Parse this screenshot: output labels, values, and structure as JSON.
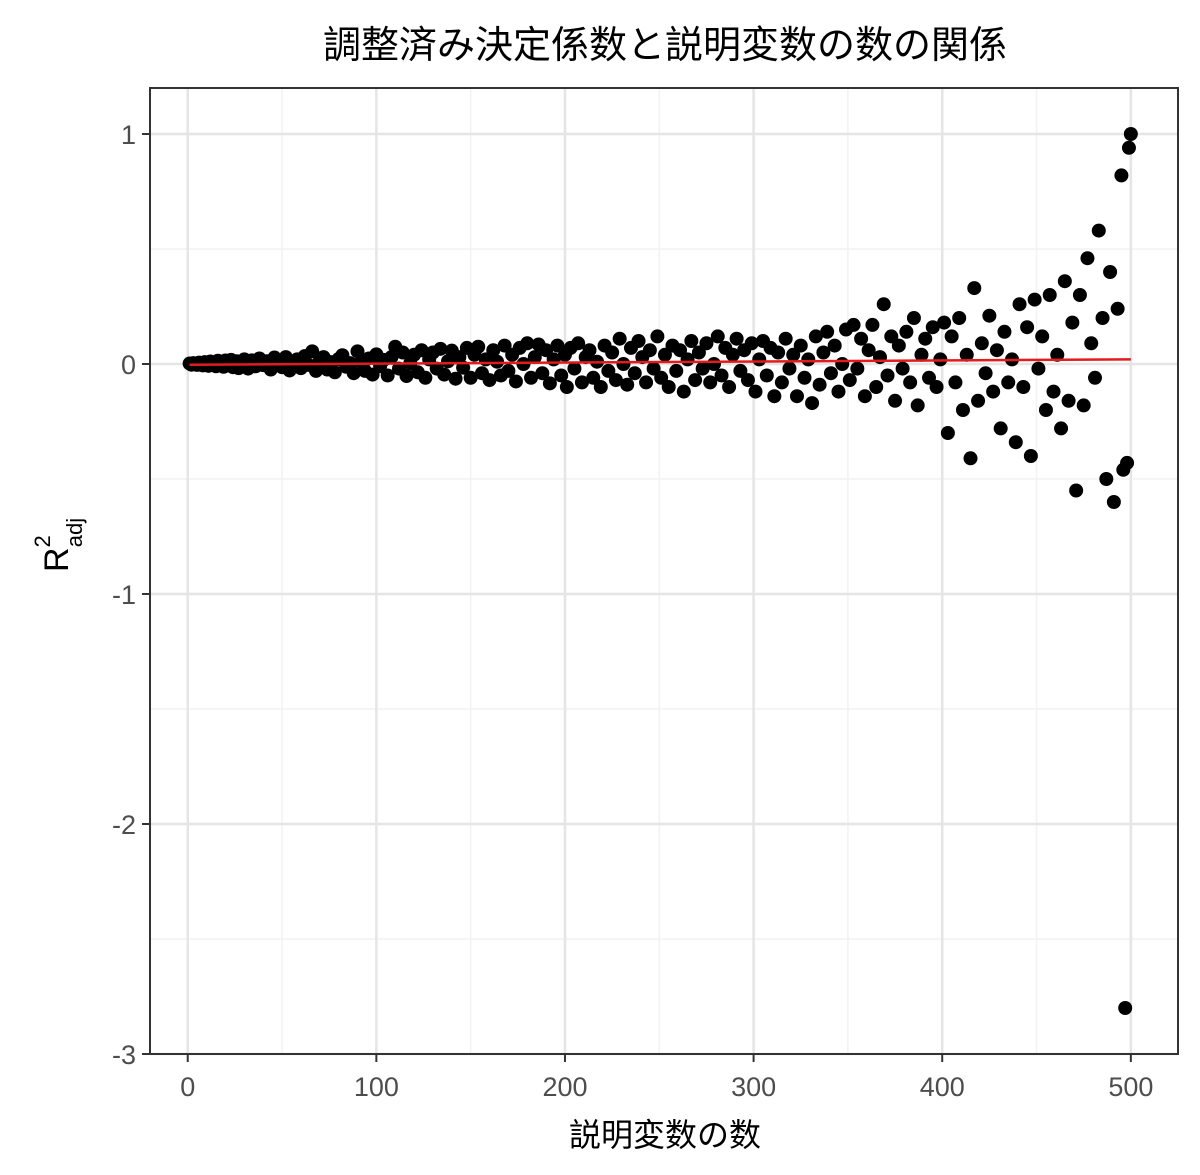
{
  "chart_data": {
    "type": "scatter",
    "title": "調整済み決定係数と説明変数の数の関係",
    "xlabel": "説明変数の数",
    "ylabel": {
      "main": "R",
      "sup": "2",
      "sub": "adj"
    },
    "xlim": [
      -20,
      525
    ],
    "ylim": [
      -3.0,
      1.2
    ],
    "x_ticks": [
      0,
      100,
      200,
      300,
      400,
      500
    ],
    "x_tick_labels": [
      "0",
      "100",
      "200",
      "300",
      "400",
      "500"
    ],
    "y_ticks": [
      -3,
      -2,
      -1,
      0,
      1
    ],
    "y_tick_labels": [
      "-3",
      "-2",
      "-1",
      "0",
      "1"
    ],
    "grid": true,
    "point_color": "#000000",
    "line_color": "#e41a1c",
    "reference_line": {
      "x": [
        1,
        500
      ],
      "y": [
        -0.003,
        0.02
      ]
    },
    "points": [
      [
        1,
        0.002
      ],
      [
        2,
        -0.003
      ],
      [
        3,
        0.004
      ],
      [
        4,
        0.001
      ],
      [
        5,
        -0.004
      ],
      [
        6,
        0.006
      ],
      [
        7,
        0.0
      ],
      [
        8,
        -0.006
      ],
      [
        9,
        0.008
      ],
      [
        10,
        0.003
      ],
      [
        11,
        -0.008
      ],
      [
        12,
        0.011
      ],
      [
        13,
        -0.002
      ],
      [
        14,
        0.005
      ],
      [
        15,
        -0.01
      ],
      [
        16,
        0.014
      ],
      [
        17,
        -0.004
      ],
      [
        18,
        0.002
      ],
      [
        19,
        -0.012
      ],
      [
        20,
        0.015
      ],
      [
        21,
        0.0
      ],
      [
        22,
        -0.006
      ],
      [
        23,
        0.018
      ],
      [
        24,
        -0.014
      ],
      [
        25,
        0.004
      ],
      [
        26,
        0.012
      ],
      [
        27,
        -0.018
      ],
      [
        28,
        0.007
      ],
      [
        29,
        -0.003
      ],
      [
        30,
        0.02
      ],
      [
        32,
        -0.02
      ],
      [
        34,
        0.016
      ],
      [
        36,
        -0.01
      ],
      [
        38,
        0.024
      ],
      [
        40,
        -0.005
      ],
      [
        42,
        0.012
      ],
      [
        44,
        -0.024
      ],
      [
        46,
        0.028
      ],
      [
        48,
        0.0
      ],
      [
        50,
        -0.014
      ],
      [
        52,
        0.03
      ],
      [
        54,
        -0.028
      ],
      [
        56,
        0.01
      ],
      [
        58,
        0.02
      ],
      [
        60,
        -0.018
      ],
      [
        62,
        0.034
      ],
      [
        64,
        -0.004
      ],
      [
        66,
        0.055
      ],
      [
        68,
        -0.03
      ],
      [
        70,
        0.014
      ],
      [
        72,
        0.03
      ],
      [
        74,
        -0.024
      ],
      [
        76,
        0.008
      ],
      [
        78,
        -0.036
      ],
      [
        80,
        0.022
      ],
      [
        82,
        0.038
      ],
      [
        84,
        -0.012
      ],
      [
        86,
        0.004
      ],
      [
        88,
        -0.04
      ],
      [
        90,
        0.055
      ],
      [
        92,
        0.01
      ],
      [
        94,
        -0.03
      ],
      [
        96,
        0.024
      ],
      [
        98,
        -0.046
      ],
      [
        100,
        0.042
      ],
      [
        102,
        -0.01
      ],
      [
        104,
        0.018
      ],
      [
        106,
        -0.05
      ],
      [
        108,
        0.03
      ],
      [
        110,
        0.075
      ],
      [
        112,
        -0.02
      ],
      [
        114,
        0.05
      ],
      [
        116,
        -0.052
      ],
      [
        118,
        0.004
      ],
      [
        120,
        0.04
      ],
      [
        122,
        -0.036
      ],
      [
        124,
        0.06
      ],
      [
        126,
        -0.06
      ],
      [
        128,
        0.02
      ],
      [
        130,
        0.05
      ],
      [
        132,
        -0.02
      ],
      [
        134,
        0.066
      ],
      [
        136,
        -0.046
      ],
      [
        138,
        0.012
      ],
      [
        140,
        0.058
      ],
      [
        142,
        -0.064
      ],
      [
        144,
        0.03
      ],
      [
        146,
        -0.016
      ],
      [
        148,
        0.07
      ],
      [
        150,
        -0.06
      ],
      [
        152,
        0.04
      ],
      [
        154,
        0.075
      ],
      [
        156,
        -0.04
      ],
      [
        158,
        0.02
      ],
      [
        160,
        -0.07
      ],
      [
        162,
        0.06
      ],
      [
        164,
        0.01
      ],
      [
        166,
        -0.05
      ],
      [
        168,
        0.08
      ],
      [
        170,
        -0.03
      ],
      [
        172,
        0.04
      ],
      [
        174,
        -0.076
      ],
      [
        176,
        0.07
      ],
      [
        178,
        0.0
      ],
      [
        180,
        0.09
      ],
      [
        182,
        -0.06
      ],
      [
        184,
        0.03
      ],
      [
        186,
        0.085
      ],
      [
        188,
        -0.04
      ],
      [
        190,
        0.06
      ],
      [
        192,
        -0.084
      ],
      [
        194,
        0.02
      ],
      [
        196,
        0.08
      ],
      [
        198,
        -0.05
      ],
      [
        200,
        0.04
      ],
      [
        201,
        -0.1
      ],
      [
        203,
        0.07
      ],
      [
        205,
        -0.02
      ],
      [
        207,
        0.09
      ],
      [
        209,
        -0.08
      ],
      [
        211,
        0.03
      ],
      [
        213,
        0.06
      ],
      [
        215,
        -0.06
      ],
      [
        217,
        0.01
      ],
      [
        219,
        -0.1
      ],
      [
        221,
        0.08
      ],
      [
        223,
        -0.03
      ],
      [
        225,
        0.05
      ],
      [
        227,
        -0.07
      ],
      [
        229,
        0.11
      ],
      [
        231,
        0.0
      ],
      [
        233,
        -0.09
      ],
      [
        235,
        0.07
      ],
      [
        237,
        -0.04
      ],
      [
        239,
        0.1
      ],
      [
        241,
        0.03
      ],
      [
        243,
        -0.08
      ],
      [
        245,
        0.06
      ],
      [
        247,
        -0.02
      ],
      [
        249,
        0.12
      ],
      [
        251,
        -0.06
      ],
      [
        253,
        0.04
      ],
      [
        255,
        -0.1
      ],
      [
        257,
        0.08
      ],
      [
        259,
        -0.03
      ],
      [
        261,
        0.06
      ],
      [
        263,
        -0.12
      ],
      [
        265,
        0.02
      ],
      [
        267,
        0.1
      ],
      [
        269,
        -0.07
      ],
      [
        271,
        0.05
      ],
      [
        273,
        -0.02
      ],
      [
        275,
        0.09
      ],
      [
        277,
        -0.08
      ],
      [
        279,
        0.0
      ],
      [
        281,
        0.12
      ],
      [
        283,
        -0.05
      ],
      [
        285,
        0.07
      ],
      [
        287,
        -0.1
      ],
      [
        289,
        0.04
      ],
      [
        291,
        0.11
      ],
      [
        293,
        -0.03
      ],
      [
        295,
        0.06
      ],
      [
        297,
        -0.07
      ],
      [
        299,
        0.09
      ],
      [
        301,
        -0.12
      ],
      [
        303,
        0.02
      ],
      [
        305,
        0.1
      ],
      [
        307,
        -0.05
      ],
      [
        309,
        0.07
      ],
      [
        311,
        -0.14
      ],
      [
        313,
        0.05
      ],
      [
        315,
        -0.08
      ],
      [
        317,
        0.11
      ],
      [
        319,
        -0.02
      ],
      [
        321,
        0.04
      ],
      [
        323,
        -0.14
      ],
      [
        325,
        0.08
      ],
      [
        327,
        -0.06
      ],
      [
        329,
        0.02
      ],
      [
        331,
        -0.17
      ],
      [
        333,
        0.12
      ],
      [
        335,
        -0.09
      ],
      [
        337,
        0.05
      ],
      [
        339,
        0.14
      ],
      [
        341,
        -0.04
      ],
      [
        343,
        0.08
      ],
      [
        345,
        -0.12
      ],
      [
        347,
        0.0
      ],
      [
        349,
        0.15
      ],
      [
        351,
        -0.07
      ],
      [
        353,
        0.17
      ],
      [
        355,
        -0.02
      ],
      [
        357,
        0.11
      ],
      [
        359,
        -0.14
      ],
      [
        361,
        0.06
      ],
      [
        363,
        0.17
      ],
      [
        365,
        -0.1
      ],
      [
        367,
        0.03
      ],
      [
        369,
        0.26
      ],
      [
        371,
        -0.05
      ],
      [
        373,
        0.12
      ],
      [
        375,
        -0.16
      ],
      [
        377,
        0.08
      ],
      [
        379,
        -0.02
      ],
      [
        381,
        0.14
      ],
      [
        383,
        -0.08
      ],
      [
        385,
        0.2
      ],
      [
        387,
        -0.18
      ],
      [
        389,
        0.04
      ],
      [
        391,
        0.11
      ],
      [
        393,
        -0.06
      ],
      [
        395,
        0.16
      ],
      [
        397,
        -0.1
      ],
      [
        399,
        0.02
      ],
      [
        401,
        0.18
      ],
      [
        403,
        -0.3
      ],
      [
        405,
        0.12
      ],
      [
        407,
        -0.08
      ],
      [
        409,
        0.2
      ],
      [
        411,
        -0.2
      ],
      [
        413,
        0.04
      ],
      [
        415,
        -0.41
      ],
      [
        417,
        0.33
      ],
      [
        419,
        -0.16
      ],
      [
        421,
        0.09
      ],
      [
        423,
        -0.04
      ],
      [
        425,
        0.21
      ],
      [
        427,
        -0.12
      ],
      [
        429,
        0.06
      ],
      [
        431,
        -0.28
      ],
      [
        433,
        0.14
      ],
      [
        435,
        -0.08
      ],
      [
        437,
        0.02
      ],
      [
        439,
        -0.34
      ],
      [
        441,
        0.26
      ],
      [
        443,
        -0.1
      ],
      [
        445,
        0.16
      ],
      [
        447,
        -0.4
      ],
      [
        449,
        0.28
      ],
      [
        451,
        -0.02
      ],
      [
        453,
        0.12
      ],
      [
        455,
        -0.2
      ],
      [
        457,
        0.3
      ],
      [
        459,
        -0.12
      ],
      [
        461,
        0.04
      ],
      [
        463,
        -0.28
      ],
      [
        465,
        0.36
      ],
      [
        467,
        -0.16
      ],
      [
        469,
        0.18
      ],
      [
        471,
        -0.55
      ],
      [
        473,
        0.3
      ],
      [
        475,
        -0.18
      ],
      [
        477,
        0.46
      ],
      [
        479,
        0.09
      ],
      [
        481,
        -0.06
      ],
      [
        483,
        0.58
      ],
      [
        485,
        0.2
      ],
      [
        487,
        -0.5
      ],
      [
        489,
        0.4
      ],
      [
        491,
        -0.6
      ],
      [
        493,
        0.24
      ],
      [
        495,
        0.82
      ],
      [
        496,
        -0.46
      ],
      [
        497,
        -2.8
      ],
      [
        498,
        -0.43
      ],
      [
        499,
        0.94
      ],
      [
        500,
        1.0
      ]
    ]
  }
}
